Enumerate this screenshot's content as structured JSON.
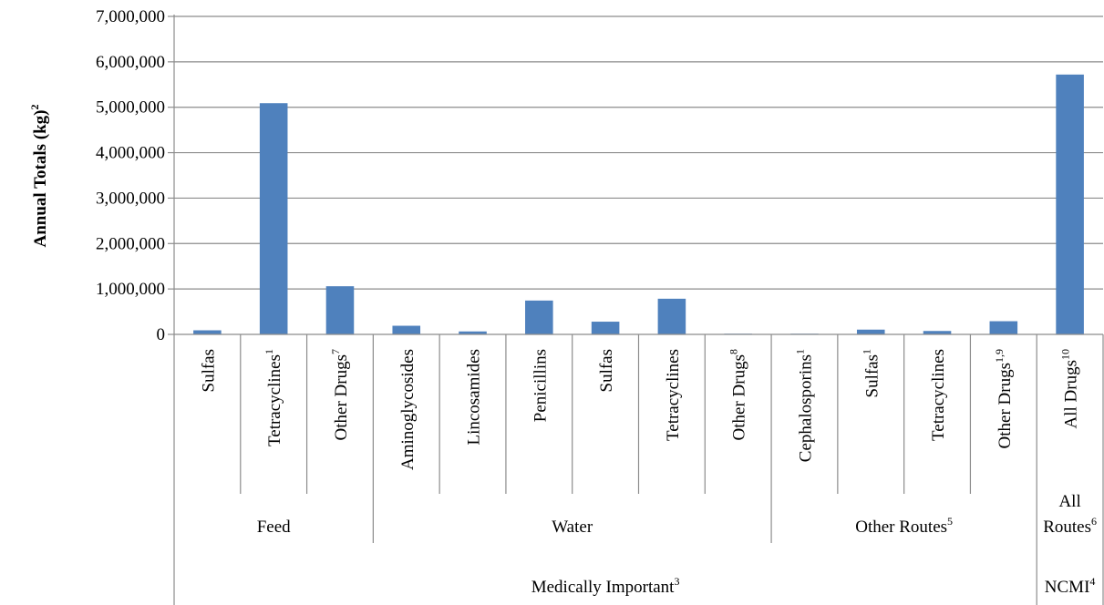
{
  "chart_data": {
    "type": "bar",
    "ylabel": "Annual Totals (kg)",
    "ylabel_sup": "2",
    "ylim": [
      0,
      7000000
    ],
    "yticks": [
      0,
      1000000,
      2000000,
      3000000,
      4000000,
      5000000,
      6000000,
      7000000
    ],
    "ytick_labels": [
      "0",
      "1,000,000",
      "2,000,000",
      "3,000,000",
      "4,000,000",
      "5,000,000",
      "6,000,000",
      "7,000,000"
    ],
    "grid": true,
    "bar_color": "#4F81BD",
    "categories": [
      {
        "label": "Sulfas",
        "sup": ""
      },
      {
        "label": "Tetracyclines",
        "sup": "1"
      },
      {
        "label": "Other Drugs",
        "sup": "7"
      },
      {
        "label": "Aminoglycosides",
        "sup": ""
      },
      {
        "label": "Lincosamides",
        "sup": ""
      },
      {
        "label": "Penicillins",
        "sup": ""
      },
      {
        "label": "Sulfas",
        "sup": ""
      },
      {
        "label": "Tetracyclines",
        "sup": ""
      },
      {
        "label": "Other Drugs",
        "sup": "8"
      },
      {
        "label": "Cephalosporins",
        "sup": "1"
      },
      {
        "label": "Sulfas",
        "sup": "1"
      },
      {
        "label": "Tetracyclines",
        "sup": ""
      },
      {
        "label": "Other Drugs",
        "sup": "1,9"
      },
      {
        "label": "All Drugs",
        "sup": "10"
      }
    ],
    "values": [
      90000,
      5090000,
      1060000,
      190000,
      65000,
      745000,
      280000,
      785000,
      15000,
      15000,
      105000,
      75000,
      290000,
      5720000
    ],
    "groups_level1": [
      {
        "label": "Feed",
        "sup": "",
        "start": 0,
        "end": 2
      },
      {
        "label": "Water",
        "sup": "",
        "start": 3,
        "end": 8
      },
      {
        "label": "Other Routes",
        "sup": "5",
        "start": 9,
        "end": 12
      },
      {
        "label_lines": [
          "All",
          "Routes"
        ],
        "sup": "6",
        "start": 13,
        "end": 13
      }
    ],
    "groups_level2": [
      {
        "label": "Medically Important",
        "sup": "3",
        "start": 0,
        "end": 12
      },
      {
        "label": "NCMI",
        "sup": "4",
        "start": 13,
        "end": 13
      }
    ]
  }
}
